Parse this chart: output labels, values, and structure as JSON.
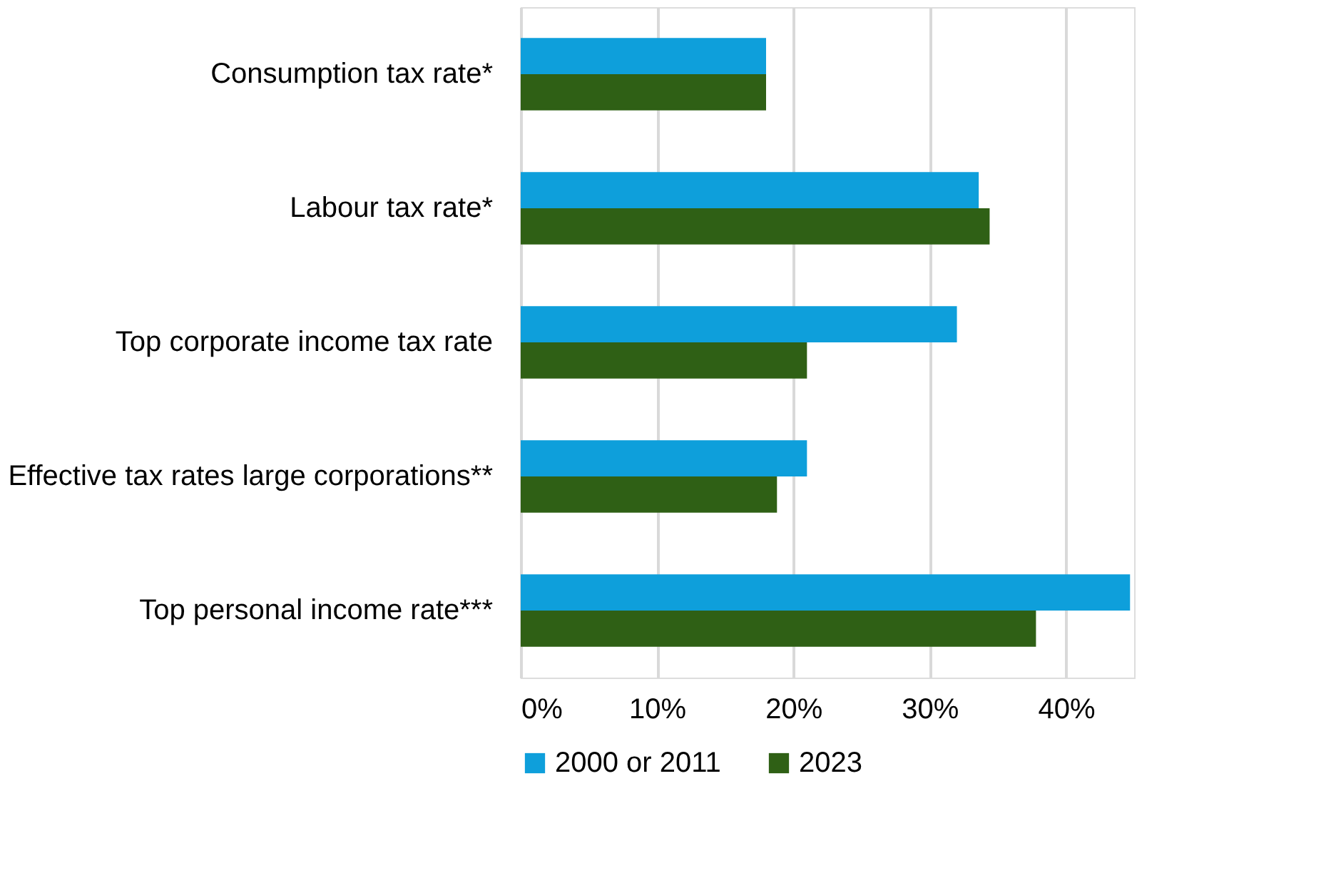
{
  "chart_data": {
    "type": "bar",
    "orientation": "horizontal",
    "categories": [
      "Consumption tax rate*",
      "Labour tax rate*",
      "Top corporate income tax rate",
      "Effective tax rates large corporations**",
      "Top personal income rate***"
    ],
    "series": [
      {
        "name": "2000 or 2011",
        "color": "#0e9fdb",
        "values": [
          18.0,
          33.6,
          32.0,
          21.0,
          44.7
        ]
      },
      {
        "name": "2023",
        "color": "#2f6015",
        "values": [
          18.0,
          34.4,
          21.0,
          18.8,
          37.8
        ]
      }
    ],
    "xlim": [
      0,
      45
    ],
    "xticks": [
      {
        "value": 0,
        "label": "0%"
      },
      {
        "value": 10,
        "label": "10%"
      },
      {
        "value": 20,
        "label": "20%"
      },
      {
        "value": 30,
        "label": "30%"
      },
      {
        "value": 40,
        "label": "40%"
      }
    ],
    "grid": "x",
    "legend": "bottom"
  }
}
